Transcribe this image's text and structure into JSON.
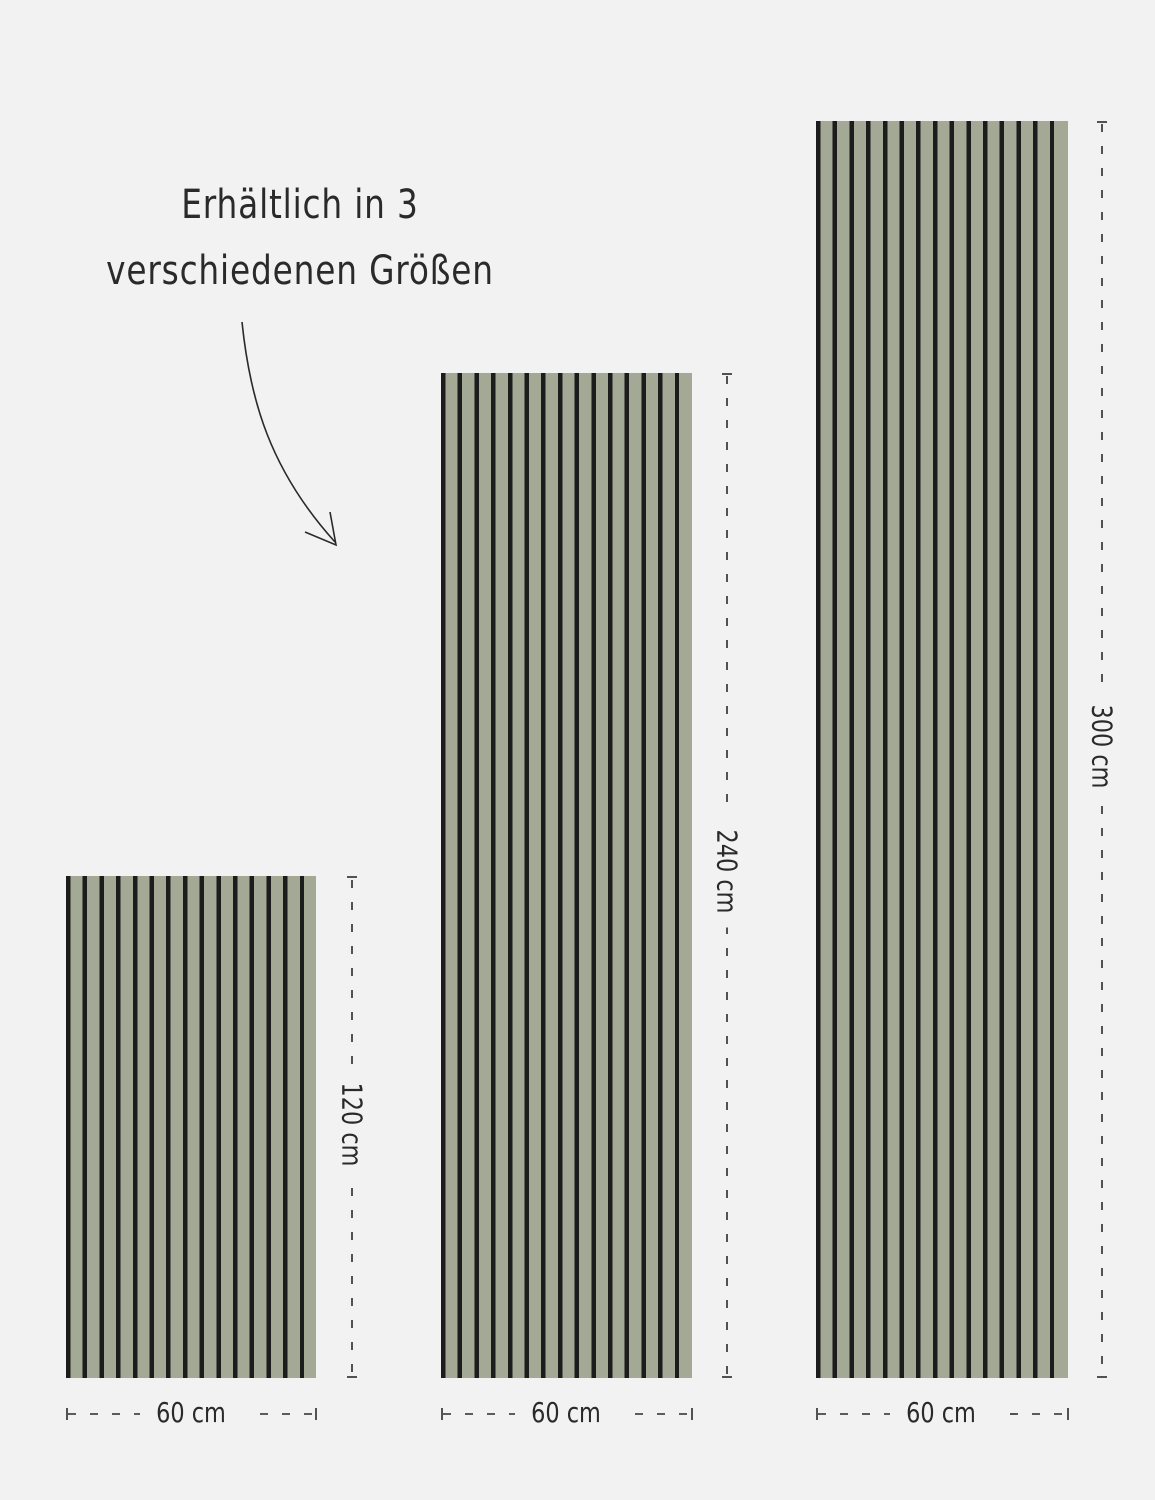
{
  "headline": {
    "line1": "Erhältlich in 3",
    "line2": "verschiedenen Größen"
  },
  "colors": {
    "background": "#f2f2f2",
    "panel_felt": "#1c1c1c",
    "panel_slat": "#a3a994"
  },
  "panels": [
    {
      "width_label": "60 cm",
      "height_label": "120 cm"
    },
    {
      "width_label": "60 cm",
      "height_label": "240 cm"
    },
    {
      "width_label": "60 cm",
      "height_label": "300 cm"
    }
  ]
}
